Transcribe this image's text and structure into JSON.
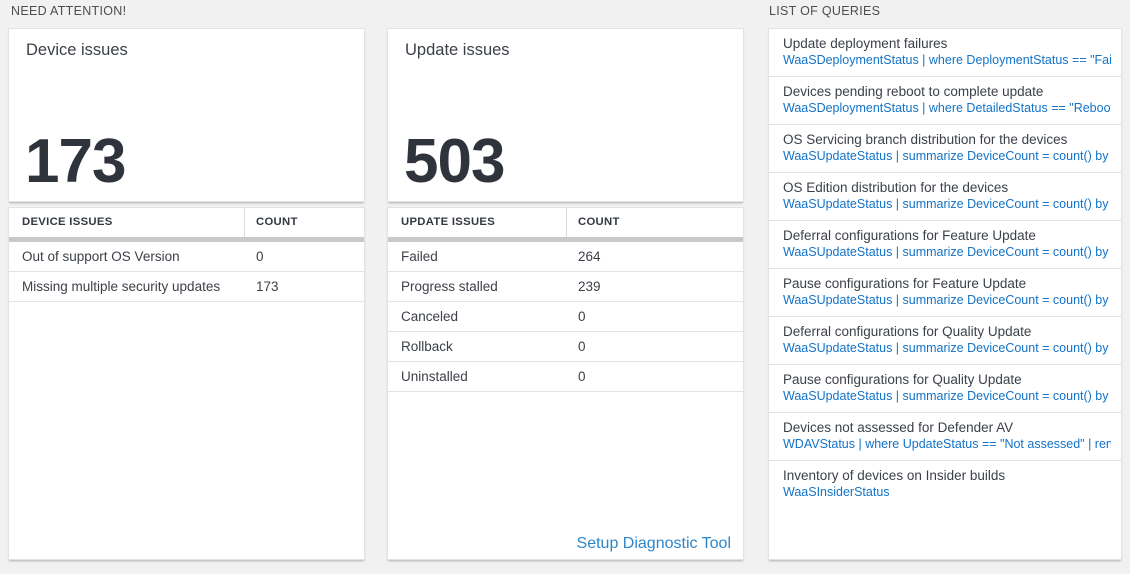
{
  "sections": {
    "need_attention": {
      "label": "NEED ATTENTION!"
    },
    "list_of_queries": {
      "label": "LIST OF QUERIES"
    }
  },
  "device_card": {
    "title": "Device issues",
    "count": "173"
  },
  "device_table": {
    "headers": {
      "issue": "DEVICE ISSUES",
      "count": "COUNT"
    },
    "rows": [
      {
        "label": "Out of support OS Version",
        "count": "0"
      },
      {
        "label": "Missing multiple security updates",
        "count": "173"
      }
    ]
  },
  "update_card": {
    "title": "Update issues",
    "count": "503"
  },
  "update_table": {
    "headers": {
      "issue": "UPDATE ISSUES",
      "count": "COUNT"
    },
    "rows": [
      {
        "label": "Failed",
        "count": "264"
      },
      {
        "label": "Progress stalled",
        "count": "239"
      },
      {
        "label": "Canceled",
        "count": "0"
      },
      {
        "label": "Rollback",
        "count": "0"
      },
      {
        "label": "Uninstalled",
        "count": "0"
      }
    ],
    "footer_link": "Setup Diagnostic Tool"
  },
  "queries": {
    "items": [
      {
        "title": "Update deployment failures",
        "query": "WaaSDeploymentStatus | where DeploymentStatus == \"Failed\" |..."
      },
      {
        "title": "Devices pending reboot to complete update",
        "query": "WaaSDeploymentStatus | where DetailedStatus == \"Reboot pend..."
      },
      {
        "title": "OS Servicing branch distribution for the devices",
        "query": "WaaSUpdateStatus | summarize DeviceCount = count() by OSSer..."
      },
      {
        "title": "OS Edition distribution for the devices",
        "query": "WaaSUpdateStatus | summarize DeviceCount = count() by OSEdit..."
      },
      {
        "title": "Deferral configurations for Feature Update",
        "query": "WaaSUpdateStatus | summarize DeviceCount = count() by Featur..."
      },
      {
        "title": "Pause configurations for Feature Update",
        "query": "WaaSUpdateStatus | summarize DeviceCount = count() by Featur..."
      },
      {
        "title": "Deferral configurations for Quality Update",
        "query": "WaaSUpdateStatus | summarize DeviceCount = count() by Qualit..."
      },
      {
        "title": "Pause configurations for Quality Update",
        "query": "WaaSUpdateStatus | summarize DeviceCount = count() by Qualit..."
      },
      {
        "title": "Devices not assessed for Defender AV",
        "query": "WDAVStatus | where UpdateStatus == \"Not assessed\" | render ta..."
      },
      {
        "title": "Inventory of devices on Insider builds",
        "query": "WaaSInsiderStatus"
      }
    ]
  },
  "colors": {
    "background": "#f1f1f2",
    "card_background": "#ffffff",
    "query_link_blue": "#1273c9",
    "setup_link_blue": "#2e86c8",
    "big_number": "#2f333b",
    "header_bar_gray": "#c7cacc"
  }
}
